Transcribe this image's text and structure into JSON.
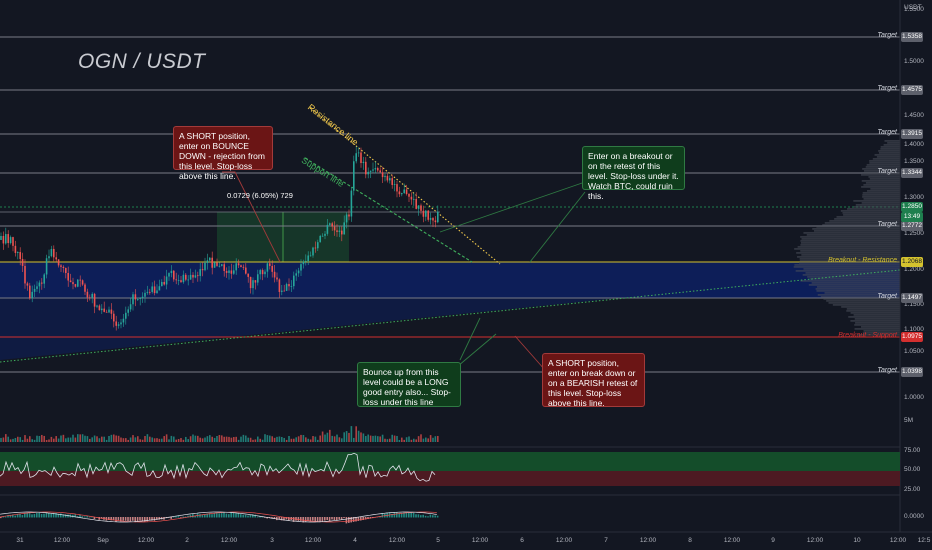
{
  "symbol": "OGN / USDT",
  "currency": "USDT",
  "price_axis": [
    "1.5500",
    "1.5000",
    "1.4500",
    "1.4000",
    "1.3500",
    "1.3000",
    "1.2500",
    "1.2000",
    "1.1500",
    "1.1000",
    "1.0500",
    "1.0000",
    "5M",
    "75.00",
    "50.00",
    "25.00",
    "0.0000"
  ],
  "time_axis": [
    "31",
    "12:00",
    "Sep",
    "12:00",
    "2",
    "12:00",
    "3",
    "12:00",
    "4",
    "12:00",
    "5",
    "12:00",
    "6",
    "12:00",
    "7",
    "12:00",
    "8",
    "12:00",
    "9",
    "12:00",
    "10",
    "12:00",
    "12:5"
  ],
  "levels": [
    {
      "label": "Target",
      "value": "1.5358",
      "color": "#787b86"
    },
    {
      "label": "Target",
      "value": "1.4575",
      "color": "#787b86"
    },
    {
      "label": "Target",
      "value": "1.3915",
      "color": "#787b86"
    },
    {
      "label": "Target",
      "value": "1.3344",
      "color": "#787b86"
    },
    {
      "label": "Target",
      "value": "1.2772",
      "color": "#787b86"
    },
    {
      "label": "Breakout - Resistance",
      "value": "1.2068",
      "color": "#d4c22e"
    },
    {
      "label": "Target",
      "value": "1.1497",
      "color": "#787b86"
    },
    {
      "label": "Breakout - Support",
      "value": "1.0975",
      "color": "#d32f2f"
    },
    {
      "label": "Target",
      "value": "1.0398",
      "color": "#787b86"
    }
  ],
  "current_price": {
    "value": "1.2850",
    "countdown": "13:49",
    "color": "#1e7f4e"
  },
  "measure": "0.0729 (6.05%) 729",
  "resistance_label": "Resistance line",
  "support_label": "Support line",
  "notes": {
    "short_top": "A SHORT position, enter on BOUNCE DOWN - rejection from this level. Stop-loss above this line.",
    "breakout": "Enter on a breakout or on the retest of this level. Stop-loss under it. Watch BTC, could ruin this.",
    "long": "Bounce up from this level could be a LONG good entry also... Stop-loss under this line",
    "short_bottom": "A SHORT position, enter on break down or on a BEARISH retest of this level. Stop-loss above this line."
  },
  "colors": {
    "bg": "#131722",
    "blue_zone": "#0d1f5c",
    "green_band": "#144d2a",
    "red_band": "#4d1a22",
    "candle_up": "#26a69a",
    "candle_down": "#ef5350"
  }
}
